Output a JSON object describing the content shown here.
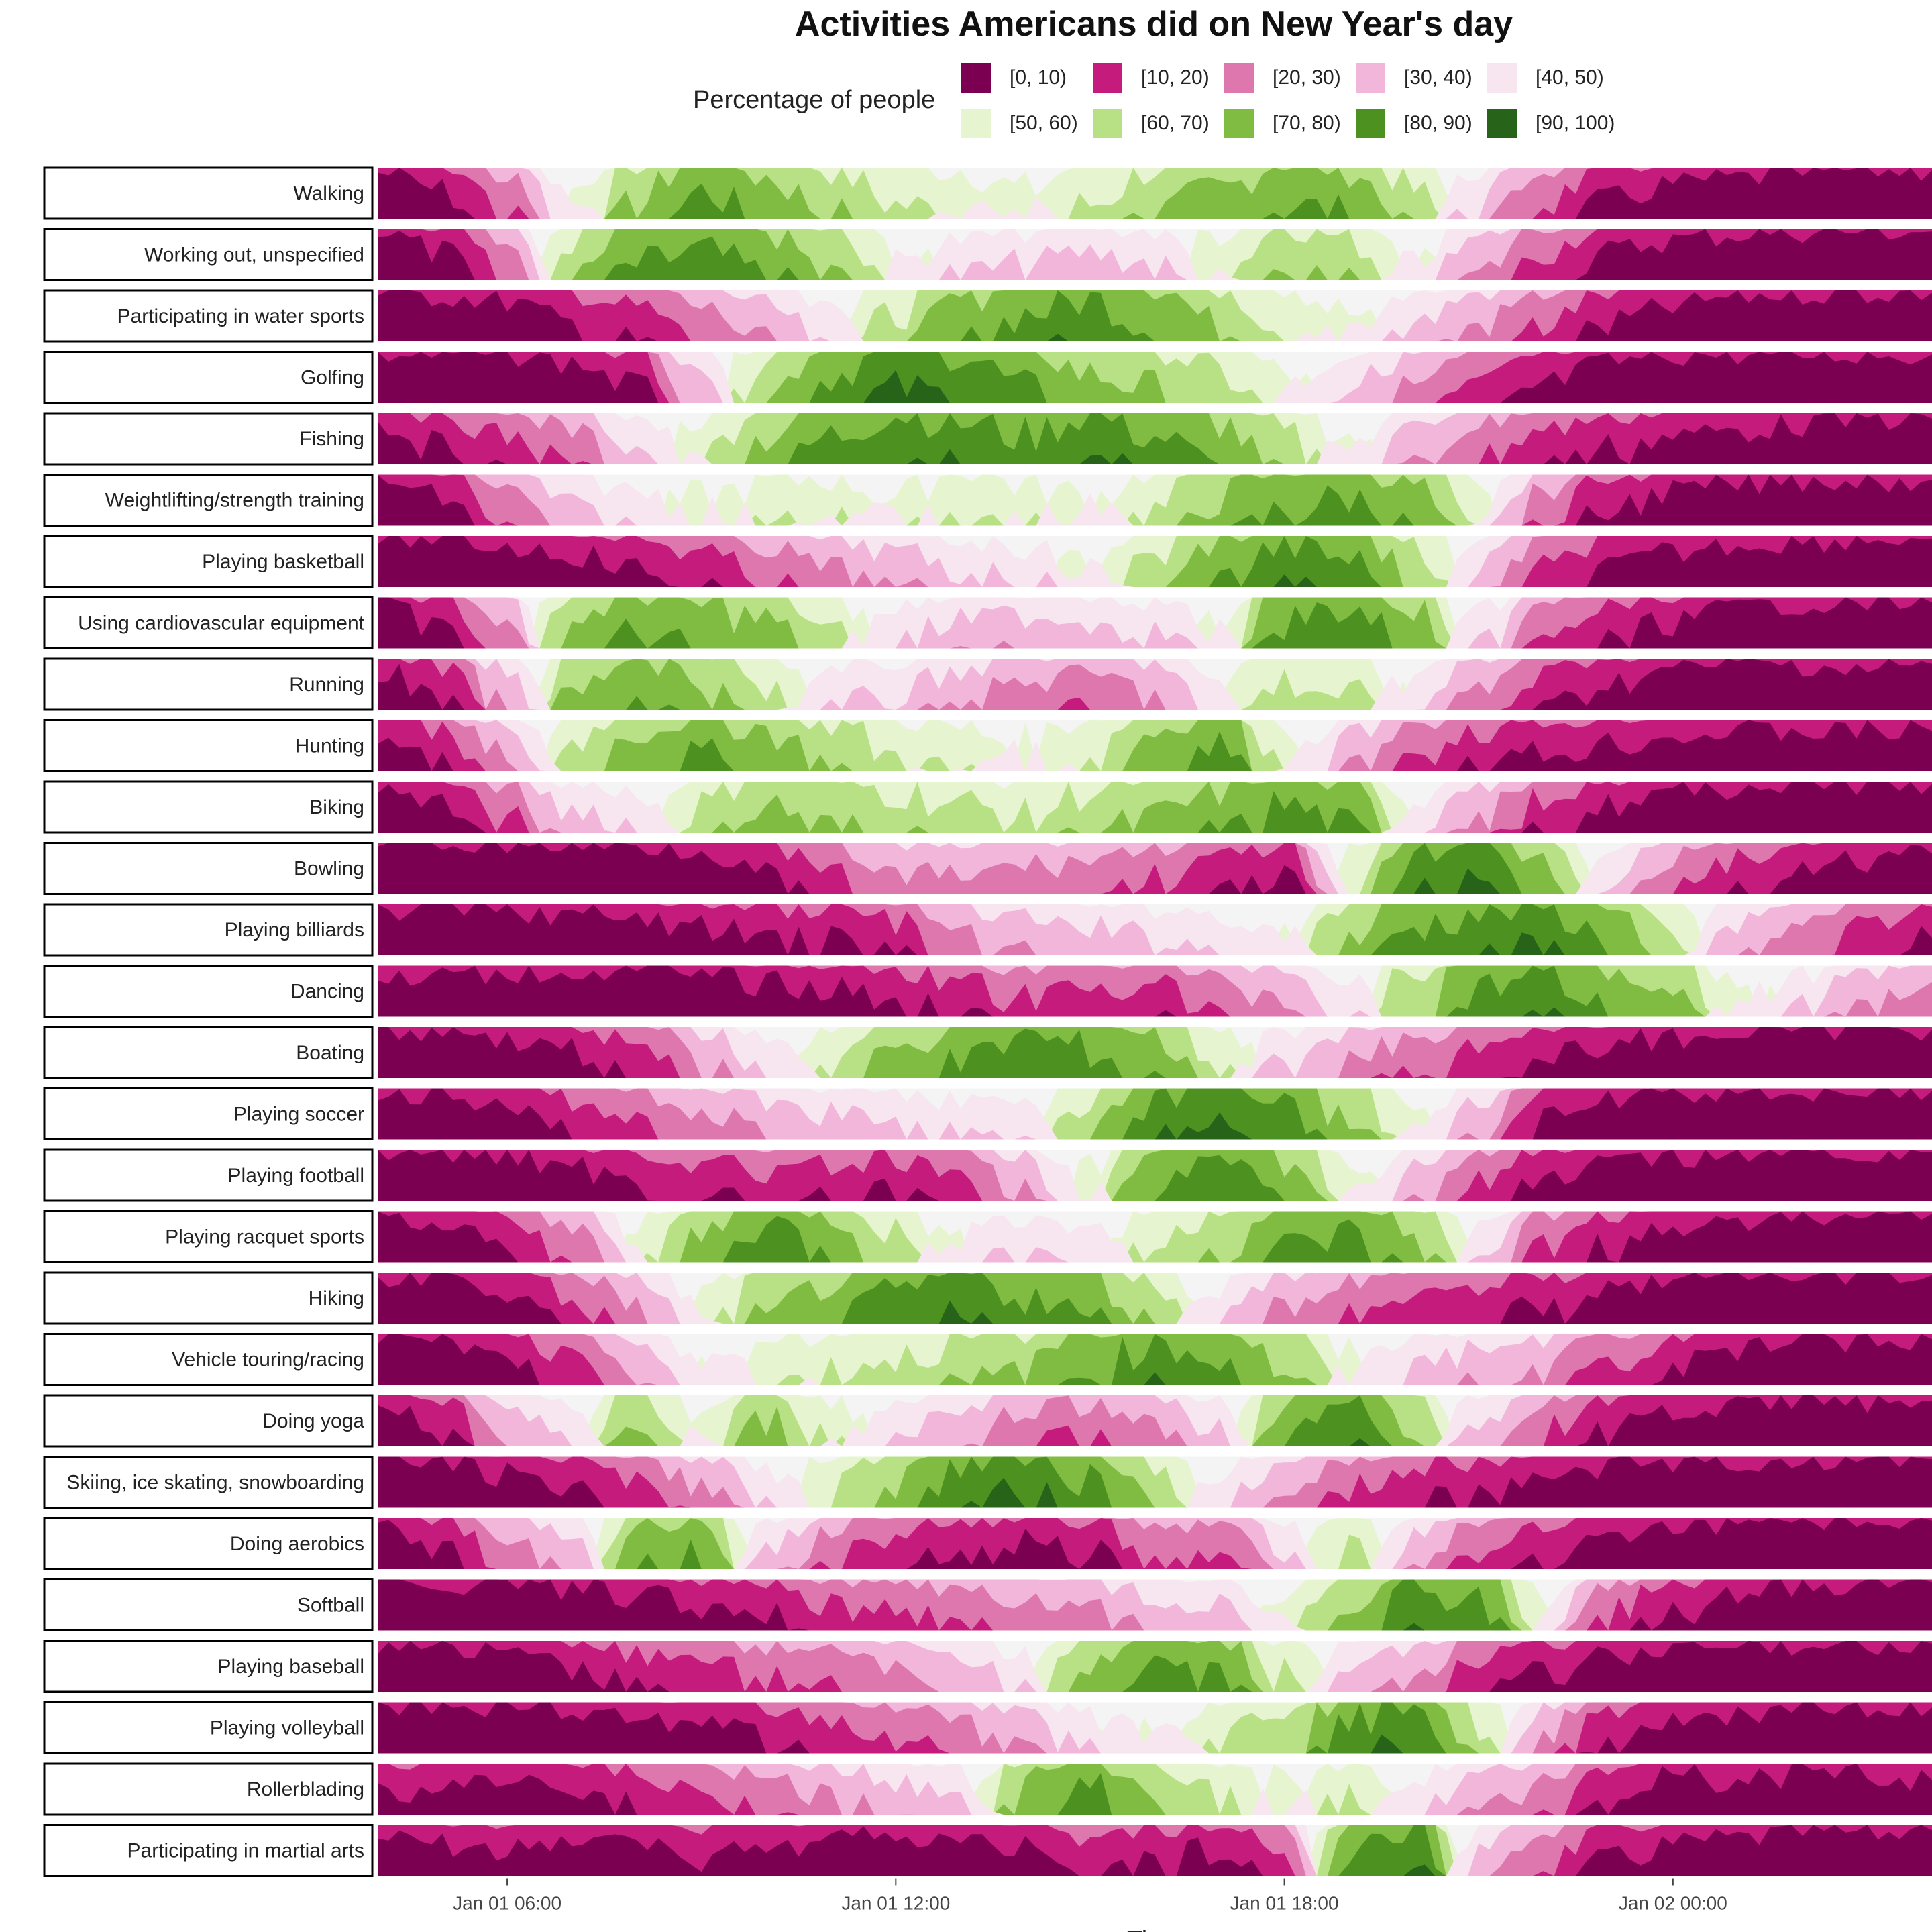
{
  "chart_data": {
    "type": "area",
    "title": "Activities Americans did on New Year's day",
    "xlabel": "Time",
    "ylabel": "",
    "x_ticks": [
      "Jan 01 06:00",
      "Jan 01 12:00",
      "Jan 01 18:00",
      "Jan 02 00:00"
    ],
    "x_range_hours": [
      4,
      28
    ],
    "tick_hours": [
      6,
      12,
      18,
      24
    ],
    "legend": {
      "title": "Percentage of people",
      "placement": "top",
      "bins": [
        "[0, 10)",
        "[10, 20)",
        "[20, 30)",
        "[30, 40)",
        "[40, 50)",
        "[50, 60)",
        "[60, 70)",
        "[70, 80)",
        "[80, 90)",
        "[90, 100)"
      ],
      "colors": [
        "#7b0051",
        "#c51b7d",
        "#de77ae",
        "#f1b6da",
        "#f7e6ef",
        "#e6f5d0",
        "#b8e186",
        "#7fbc41",
        "#4d9221",
        "#276419"
      ]
    },
    "series_note_hours": [
      4,
      5,
      6,
      7,
      8,
      9,
      10,
      11,
      12,
      13,
      14,
      15,
      16,
      17,
      18,
      19,
      20,
      21,
      22,
      23,
      24,
      25,
      26,
      27,
      28
    ],
    "series": [
      {
        "name": "Walking",
        "values": [
          6,
          12,
          28,
          55,
          72,
          85,
          78,
          70,
          62,
          60,
          55,
          62,
          70,
          75,
          82,
          80,
          65,
          45,
          25,
          15,
          10,
          8,
          6,
          5,
          5
        ]
      },
      {
        "name": "Working out, unspecified",
        "values": [
          5,
          12,
          30,
          68,
          82,
          85,
          80,
          70,
          55,
          48,
          45,
          42,
          45,
          60,
          72,
          68,
          55,
          38,
          22,
          12,
          8,
          6,
          5,
          5,
          5
        ]
      },
      {
        "name": "Participating in water sports",
        "values": [
          5,
          6,
          8,
          15,
          20,
          30,
          40,
          52,
          65,
          78,
          85,
          88,
          82,
          72,
          62,
          55,
          45,
          35,
          25,
          15,
          10,
          6,
          5,
          5,
          5
        ]
      },
      {
        "name": "Golfing",
        "values": [
          5,
          5,
          5,
          8,
          15,
          45,
          70,
          85,
          92,
          90,
          82,
          75,
          72,
          65,
          55,
          45,
          35,
          25,
          15,
          8,
          5,
          5,
          5,
          5,
          5
        ]
      },
      {
        "name": "Fishing",
        "values": [
          8,
          15,
          22,
          30,
          45,
          60,
          75,
          85,
          90,
          88,
          85,
          90,
          85,
          78,
          65,
          55,
          40,
          28,
          20,
          15,
          12,
          10,
          8,
          6,
          6
        ]
      },
      {
        "name": "Weightlifting/strength training",
        "values": [
          6,
          12,
          30,
          45,
          50,
          55,
          58,
          60,
          55,
          62,
          58,
          55,
          62,
          75,
          82,
          85,
          78,
          55,
          30,
          15,
          10,
          8,
          6,
          6,
          6
        ]
      },
      {
        "name": "Playing basketball",
        "values": [
          4,
          5,
          8,
          10,
          15,
          20,
          28,
          35,
          40,
          45,
          48,
          55,
          65,
          80,
          88,
          85,
          70,
          45,
          25,
          15,
          10,
          7,
          6,
          5,
          5
        ]
      },
      {
        "name": "Using cardiovascular equipment",
        "values": [
          6,
          15,
          35,
          75,
          82,
          78,
          75,
          62,
          48,
          42,
          40,
          42,
          45,
          55,
          85,
          88,
          78,
          50,
          28,
          18,
          12,
          8,
          6,
          6,
          6
        ]
      },
      {
        "name": "Running",
        "values": [
          8,
          18,
          40,
          72,
          82,
          75,
          62,
          50,
          45,
          38,
          32,
          30,
          35,
          55,
          65,
          62,
          50,
          35,
          20,
          12,
          8,
          6,
          6,
          8,
          6
        ]
      },
      {
        "name": "Hunting",
        "values": [
          12,
          18,
          35,
          65,
          78,
          82,
          78,
          70,
          62,
          58,
          55,
          62,
          78,
          85,
          60,
          40,
          25,
          18,
          15,
          12,
          10,
          8,
          8,
          8,
          8
        ]
      },
      {
        "name": "Biking",
        "values": [
          6,
          12,
          25,
          45,
          50,
          65,
          75,
          70,
          68,
          65,
          62,
          68,
          72,
          78,
          85,
          80,
          55,
          35,
          20,
          12,
          8,
          6,
          5,
          5,
          5
        ]
      },
      {
        "name": "Bowling",
        "values": [
          4,
          4,
          4,
          5,
          5,
          6,
          15,
          25,
          35,
          35,
          32,
          30,
          25,
          20,
          15,
          60,
          88,
          92,
          75,
          45,
          30,
          20,
          15,
          10,
          8
        ]
      },
      {
        "name": "Playing billiards",
        "values": [
          6,
          6,
          6,
          8,
          10,
          12,
          15,
          15,
          20,
          35,
          40,
          42,
          45,
          48,
          55,
          72,
          85,
          88,
          90,
          82,
          60,
          40,
          30,
          20,
          15
        ]
      },
      {
        "name": "Dancing",
        "values": [
          10,
          8,
          6,
          6,
          6,
          8,
          10,
          12,
          15,
          20,
          25,
          22,
          20,
          30,
          35,
          50,
          70,
          85,
          88,
          80,
          72,
          55,
          48,
          35,
          30
        ]
      },
      {
        "name": "Boating",
        "values": [
          5,
          5,
          8,
          12,
          20,
          35,
          48,
          62,
          75,
          82,
          88,
          85,
          78,
          62,
          45,
          35,
          28,
          20,
          15,
          10,
          8,
          6,
          5,
          5,
          5
        ]
      },
      {
        "name": "Playing soccer",
        "values": [
          5,
          6,
          12,
          18,
          25,
          32,
          38,
          42,
          45,
          48,
          52,
          68,
          88,
          92,
          85,
          72,
          55,
          40,
          15,
          8,
          6,
          5,
          5,
          5,
          5
        ]
      },
      {
        "name": "Playing football",
        "values": [
          5,
          5,
          6,
          10,
          15,
          18,
          22,
          20,
          18,
          25,
          38,
          55,
          82,
          92,
          78,
          58,
          40,
          25,
          15,
          10,
          7,
          5,
          5,
          5,
          5
        ]
      },
      {
        "name": "Playing racquet sports",
        "values": [
          5,
          8,
          15,
          30,
          55,
          75,
          88,
          80,
          65,
          52,
          48,
          50,
          62,
          72,
          82,
          85,
          75,
          50,
          25,
          15,
          10,
          7,
          6,
          5,
          5
        ]
      },
      {
        "name": "Hiking",
        "values": [
          5,
          6,
          12,
          22,
          35,
          55,
          70,
          78,
          85,
          90,
          85,
          80,
          68,
          50,
          35,
          28,
          22,
          18,
          15,
          10,
          6,
          5,
          5,
          5,
          5
        ]
      },
      {
        "name": "Vehicle touring/racing",
        "values": [
          5,
          6,
          12,
          22,
          38,
          52,
          58,
          62,
          65,
          68,
          72,
          82,
          88,
          85,
          72,
          55,
          45,
          40,
          35,
          25,
          15,
          10,
          8,
          6,
          6
        ]
      },
      {
        "name": "Doing yoga",
        "values": [
          6,
          15,
          35,
          50,
          72,
          55,
          75,
          60,
          48,
          40,
          30,
          28,
          35,
          45,
          80,
          88,
          70,
          45,
          25,
          15,
          10,
          8,
          6,
          6,
          6
        ]
      },
      {
        "name": "Skiing, ice skating, snowboarding",
        "values": [
          5,
          6,
          10,
          15,
          22,
          35,
          48,
          62,
          75,
          88,
          92,
          85,
          70,
          50,
          35,
          25,
          18,
          15,
          12,
          8,
          6,
          5,
          5,
          5,
          5
        ]
      },
      {
        "name": "Doing aerobics",
        "values": [
          6,
          15,
          30,
          38,
          78,
          82,
          45,
          28,
          20,
          15,
          12,
          15,
          25,
          28,
          45,
          65,
          40,
          25,
          18,
          12,
          8,
          6,
          5,
          5,
          5
        ]
      },
      {
        "name": "Softball",
        "values": [
          4,
          5,
          6,
          8,
          10,
          12,
          15,
          22,
          25,
          28,
          30,
          35,
          40,
          42,
          55,
          75,
          90,
          85,
          55,
          25,
          15,
          10,
          6,
          5,
          5
        ]
      },
      {
        "name": "Playing baseball",
        "values": [
          5,
          6,
          8,
          12,
          18,
          22,
          25,
          28,
          32,
          38,
          50,
          75,
          85,
          82,
          62,
          45,
          35,
          22,
          15,
          10,
          7,
          5,
          5,
          5,
          5
        ]
      },
      {
        "name": "Playing volleyball",
        "values": [
          5,
          5,
          6,
          8,
          10,
          12,
          15,
          20,
          25,
          32,
          40,
          50,
          55,
          62,
          70,
          85,
          92,
          65,
          35,
          18,
          12,
          8,
          6,
          6,
          6
        ]
      },
      {
        "name": "Rollerblading",
        "values": [
          15,
          10,
          10,
          12,
          18,
          25,
          30,
          35,
          40,
          48,
          75,
          85,
          72,
          62,
          55,
          62,
          50,
          40,
          30,
          15,
          8,
          10,
          8,
          8,
          10
        ]
      },
      {
        "name": "Participating in martial arts",
        "values": [
          8,
          10,
          12,
          10,
          12,
          15,
          12,
          10,
          8,
          10,
          12,
          18,
          15,
          12,
          25,
          85,
          90,
          45,
          25,
          15,
          10,
          8,
          6,
          6,
          6
        ]
      }
    ]
  }
}
